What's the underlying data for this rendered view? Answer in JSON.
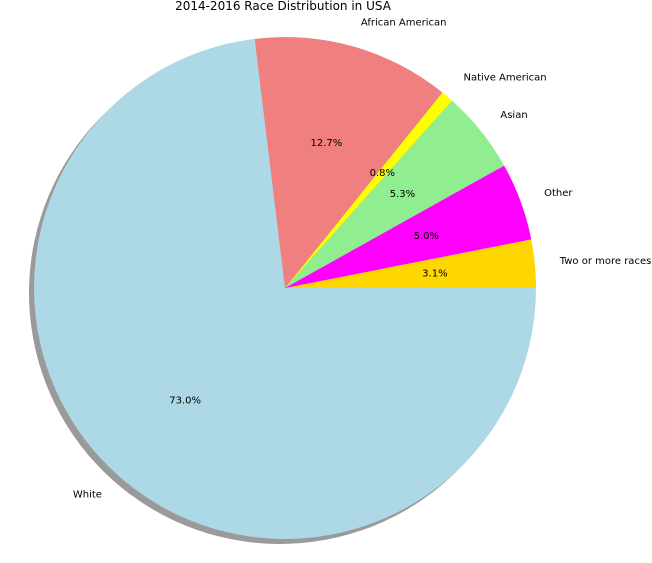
{
  "chart_data": {
    "type": "pie",
    "title": "2014-2016 Race Distribution in USA",
    "shadow": true,
    "start_angle_deg": 0,
    "direction": "counterclockwise",
    "slices": [
      {
        "label": "Two or more races",
        "value": 3.1,
        "pct_label": "3.1%",
        "color": "#ffd700"
      },
      {
        "label": "Other",
        "value": 5.0,
        "pct_label": "5.0%",
        "color": "#ff00ff"
      },
      {
        "label": "Asian",
        "value": 5.3,
        "pct_label": "5.3%",
        "color": "#90ee90"
      },
      {
        "label": "Native American",
        "value": 0.8,
        "pct_label": "0.8%",
        "color": "#ffff00"
      },
      {
        "label": "African American",
        "value": 12.7,
        "pct_label": "12.7%",
        "color": "#f08080"
      },
      {
        "label": "White",
        "value": 73.0,
        "pct_label": "73.0%",
        "color": "#add8e6"
      }
    ]
  }
}
